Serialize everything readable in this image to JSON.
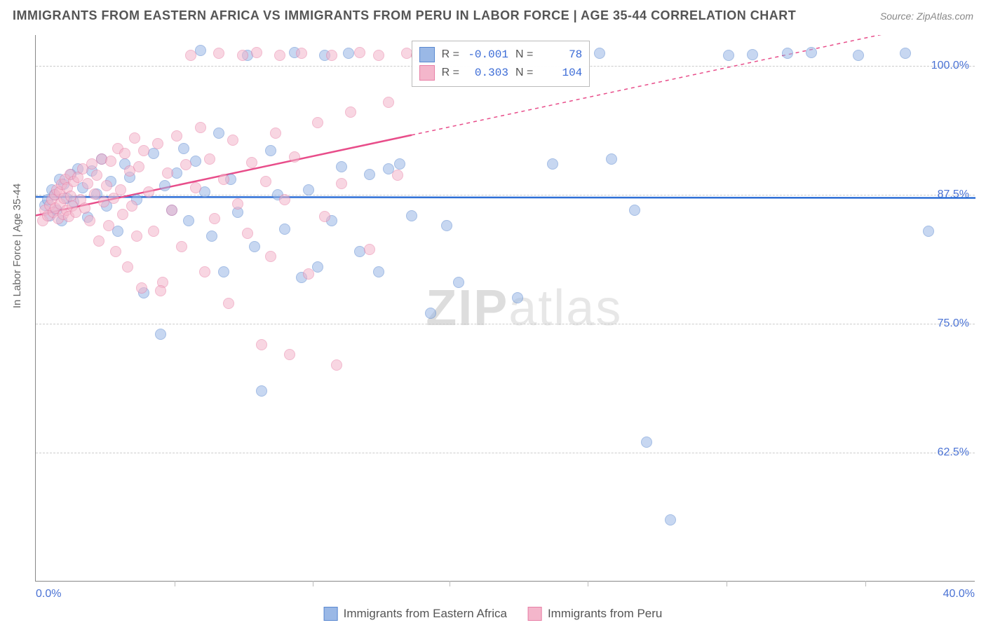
{
  "title": "IMMIGRANTS FROM EASTERN AFRICA VS IMMIGRANTS FROM PERU IN LABOR FORCE | AGE 35-44 CORRELATION CHART",
  "source": "Source: ZipAtlas.com",
  "watermark_bold": "ZIP",
  "watermark_light": "atlas",
  "chart": {
    "type": "scatter",
    "y_axis_title": "In Labor Force | Age 35-44",
    "xlim": [
      0,
      40
    ],
    "ylim": [
      50,
      103
    ],
    "x_ticks": [
      0,
      40
    ],
    "x_tick_labels": [
      "0.0%",
      "40.0%"
    ],
    "x_minor_ticks": [
      5.9,
      11.8,
      17.6,
      23.5,
      29.4,
      35.3
    ],
    "y_ticks": [
      62.5,
      75.0,
      87.5,
      100.0
    ],
    "y_tick_labels": [
      "62.5%",
      "75.0%",
      "87.5%",
      "100.0%"
    ],
    "background_color": "#ffffff",
    "grid_color": "#cccccc",
    "marker_radius": 8,
    "marker_opacity": 0.55,
    "series": [
      {
        "name": "Immigrants from Eastern Africa",
        "fill_color": "#9ab8e6",
        "stroke_color": "#5a88d0",
        "trend_color": "#2e6fd6",
        "R": "-0.001",
        "N": "78",
        "trend": {
          "y_at_x0": 87.3,
          "y_at_x40": 87.2,
          "solid_until_x": 40
        },
        "points": [
          [
            0.4,
            86.5
          ],
          [
            0.5,
            87.0
          ],
          [
            0.6,
            85.5
          ],
          [
            0.7,
            88.0
          ],
          [
            0.8,
            87.5
          ],
          [
            0.9,
            86.0
          ],
          [
            1.0,
            89.0
          ],
          [
            1.1,
            85.0
          ],
          [
            1.2,
            88.5
          ],
          [
            1.3,
            87.2
          ],
          [
            1.5,
            89.5
          ],
          [
            1.6,
            86.8
          ],
          [
            1.8,
            90.0
          ],
          [
            2.0,
            88.2
          ],
          [
            2.2,
            85.3
          ],
          [
            2.4,
            89.8
          ],
          [
            2.6,
            87.6
          ],
          [
            2.8,
            91.0
          ],
          [
            3.0,
            86.4
          ],
          [
            3.2,
            88.8
          ],
          [
            3.5,
            84.0
          ],
          [
            3.8,
            90.5
          ],
          [
            4.0,
            89.2
          ],
          [
            4.3,
            87.0
          ],
          [
            4.6,
            78.0
          ],
          [
            5.0,
            91.5
          ],
          [
            5.3,
            74.0
          ],
          [
            5.5,
            88.4
          ],
          [
            5.8,
            86.0
          ],
          [
            6.0,
            89.6
          ],
          [
            6.3,
            92.0
          ],
          [
            6.5,
            85.0
          ],
          [
            6.8,
            90.8
          ],
          [
            7.0,
            101.5
          ],
          [
            7.2,
            87.8
          ],
          [
            7.5,
            83.5
          ],
          [
            7.8,
            93.5
          ],
          [
            8.0,
            80.0
          ],
          [
            8.3,
            89.0
          ],
          [
            8.6,
            85.8
          ],
          [
            9.0,
            101.0
          ],
          [
            9.3,
            82.5
          ],
          [
            9.6,
            68.5
          ],
          [
            10.0,
            91.8
          ],
          [
            10.3,
            87.5
          ],
          [
            10.6,
            84.2
          ],
          [
            11.0,
            101.3
          ],
          [
            11.3,
            79.5
          ],
          [
            11.6,
            88.0
          ],
          [
            12.0,
            80.5
          ],
          [
            12.3,
            101.0
          ],
          [
            12.6,
            85.0
          ],
          [
            13.0,
            90.2
          ],
          [
            13.3,
            101.2
          ],
          [
            13.8,
            82.0
          ],
          [
            14.2,
            89.5
          ],
          [
            14.6,
            80.0
          ],
          [
            15.0,
            90.0
          ],
          [
            15.5,
            90.5
          ],
          [
            16.0,
            85.5
          ],
          [
            16.8,
            76.0
          ],
          [
            17.5,
            84.5
          ],
          [
            18.0,
            79.0
          ],
          [
            20.5,
            77.5
          ],
          [
            22.0,
            90.5
          ],
          [
            23.0,
            101.0
          ],
          [
            24.0,
            101.2
          ],
          [
            24.5,
            91.0
          ],
          [
            25.5,
            86.0
          ],
          [
            26.0,
            63.5
          ],
          [
            27.0,
            56.0
          ],
          [
            29.5,
            101.0
          ],
          [
            30.5,
            101.1
          ],
          [
            32.0,
            101.2
          ],
          [
            33.0,
            101.3
          ],
          [
            35.0,
            101.0
          ],
          [
            37.0,
            101.2
          ],
          [
            38.0,
            84.0
          ]
        ]
      },
      {
        "name": "Immigrants from Peru",
        "fill_color": "#f4b6cb",
        "stroke_color": "#e87fa6",
        "trend_color": "#e84d8a",
        "R": "0.303",
        "N": "104",
        "trend": {
          "y_at_x0": 85.5,
          "y_at_x40": 105.0,
          "solid_until_x": 16
        },
        "points": [
          [
            0.3,
            85.0
          ],
          [
            0.4,
            86.0
          ],
          [
            0.5,
            85.5
          ],
          [
            0.6,
            86.5
          ],
          [
            0.7,
            87.0
          ],
          [
            0.75,
            85.8
          ],
          [
            0.8,
            87.5
          ],
          [
            0.85,
            86.2
          ],
          [
            0.9,
            88.0
          ],
          [
            0.95,
            85.2
          ],
          [
            1.0,
            87.8
          ],
          [
            1.05,
            86.6
          ],
          [
            1.1,
            88.5
          ],
          [
            1.15,
            85.6
          ],
          [
            1.2,
            87.2
          ],
          [
            1.25,
            89.0
          ],
          [
            1.3,
            86.0
          ],
          [
            1.35,
            88.2
          ],
          [
            1.4,
            85.4
          ],
          [
            1.45,
            89.5
          ],
          [
            1.5,
            87.4
          ],
          [
            1.55,
            86.4
          ],
          [
            1.6,
            88.8
          ],
          [
            1.7,
            85.8
          ],
          [
            1.8,
            89.2
          ],
          [
            1.9,
            87.0
          ],
          [
            2.0,
            90.0
          ],
          [
            2.1,
            86.2
          ],
          [
            2.2,
            88.6
          ],
          [
            2.3,
            85.0
          ],
          [
            2.4,
            90.5
          ],
          [
            2.5,
            87.6
          ],
          [
            2.6,
            89.4
          ],
          [
            2.7,
            83.0
          ],
          [
            2.8,
            91.0
          ],
          [
            2.9,
            86.8
          ],
          [
            3.0,
            88.4
          ],
          [
            3.1,
            84.5
          ],
          [
            3.2,
            90.8
          ],
          [
            3.3,
            87.2
          ],
          [
            3.4,
            82.0
          ],
          [
            3.5,
            92.0
          ],
          [
            3.6,
            88.0
          ],
          [
            3.7,
            85.6
          ],
          [
            3.8,
            91.5
          ],
          [
            3.9,
            80.5
          ],
          [
            4.0,
            89.8
          ],
          [
            4.1,
            86.4
          ],
          [
            4.2,
            93.0
          ],
          [
            4.3,
            83.5
          ],
          [
            4.4,
            90.2
          ],
          [
            4.5,
            78.5
          ],
          [
            4.6,
            91.8
          ],
          [
            4.8,
            87.8
          ],
          [
            5.0,
            84.0
          ],
          [
            5.2,
            92.5
          ],
          [
            5.4,
            79.0
          ],
          [
            5.6,
            89.6
          ],
          [
            5.8,
            86.0
          ],
          [
            6.0,
            93.2
          ],
          [
            6.2,
            82.5
          ],
          [
            6.4,
            90.4
          ],
          [
            6.6,
            101.0
          ],
          [
            6.8,
            88.2
          ],
          [
            7.0,
            94.0
          ],
          [
            7.2,
            80.0
          ],
          [
            7.4,
            91.0
          ],
          [
            7.6,
            85.2
          ],
          [
            7.8,
            101.2
          ],
          [
            8.0,
            89.0
          ],
          [
            8.2,
            77.0
          ],
          [
            8.4,
            92.8
          ],
          [
            8.6,
            86.6
          ],
          [
            8.8,
            101.0
          ],
          [
            9.0,
            83.8
          ],
          [
            9.2,
            90.6
          ],
          [
            9.4,
            101.3
          ],
          [
            9.6,
            73.0
          ],
          [
            9.8,
            88.8
          ],
          [
            10.0,
            81.5
          ],
          [
            10.2,
            93.5
          ],
          [
            10.4,
            101.0
          ],
          [
            10.6,
            87.0
          ],
          [
            10.8,
            72.0
          ],
          [
            11.0,
            91.2
          ],
          [
            11.3,
            101.2
          ],
          [
            11.6,
            79.8
          ],
          [
            12.0,
            94.5
          ],
          [
            12.3,
            85.4
          ],
          [
            12.6,
            101.0
          ],
          [
            13.0,
            88.6
          ],
          [
            13.4,
            95.5
          ],
          [
            13.8,
            101.3
          ],
          [
            14.2,
            82.2
          ],
          [
            14.6,
            101.0
          ],
          [
            15.0,
            96.5
          ],
          [
            15.4,
            89.4
          ],
          [
            15.8,
            101.2
          ],
          [
            16.2,
            101.0
          ],
          [
            16.6,
            101.3
          ],
          [
            17.0,
            101.0
          ],
          [
            17.4,
            101.2
          ],
          [
            12.8,
            71.0
          ],
          [
            5.3,
            78.2
          ]
        ]
      }
    ]
  },
  "legend": {
    "items": [
      {
        "label": "Immigrants from Eastern Africa",
        "fill": "#9ab8e6",
        "stroke": "#5a88d0"
      },
      {
        "label": "Immigrants from Peru",
        "fill": "#f4b6cb",
        "stroke": "#e87fa6"
      }
    ]
  },
  "stats_box": {
    "left_pct": 40,
    "rows": [
      {
        "fill": "#9ab8e6",
        "stroke": "#5a88d0",
        "R_label": "R =",
        "R_val": "-0.001",
        "N_label": "N =",
        "N_val": "78"
      },
      {
        "fill": "#f4b6cb",
        "stroke": "#e87fa6",
        "R_label": "R =",
        "R_val": "0.303",
        "N_label": "N =",
        "N_val": "104"
      }
    ]
  }
}
